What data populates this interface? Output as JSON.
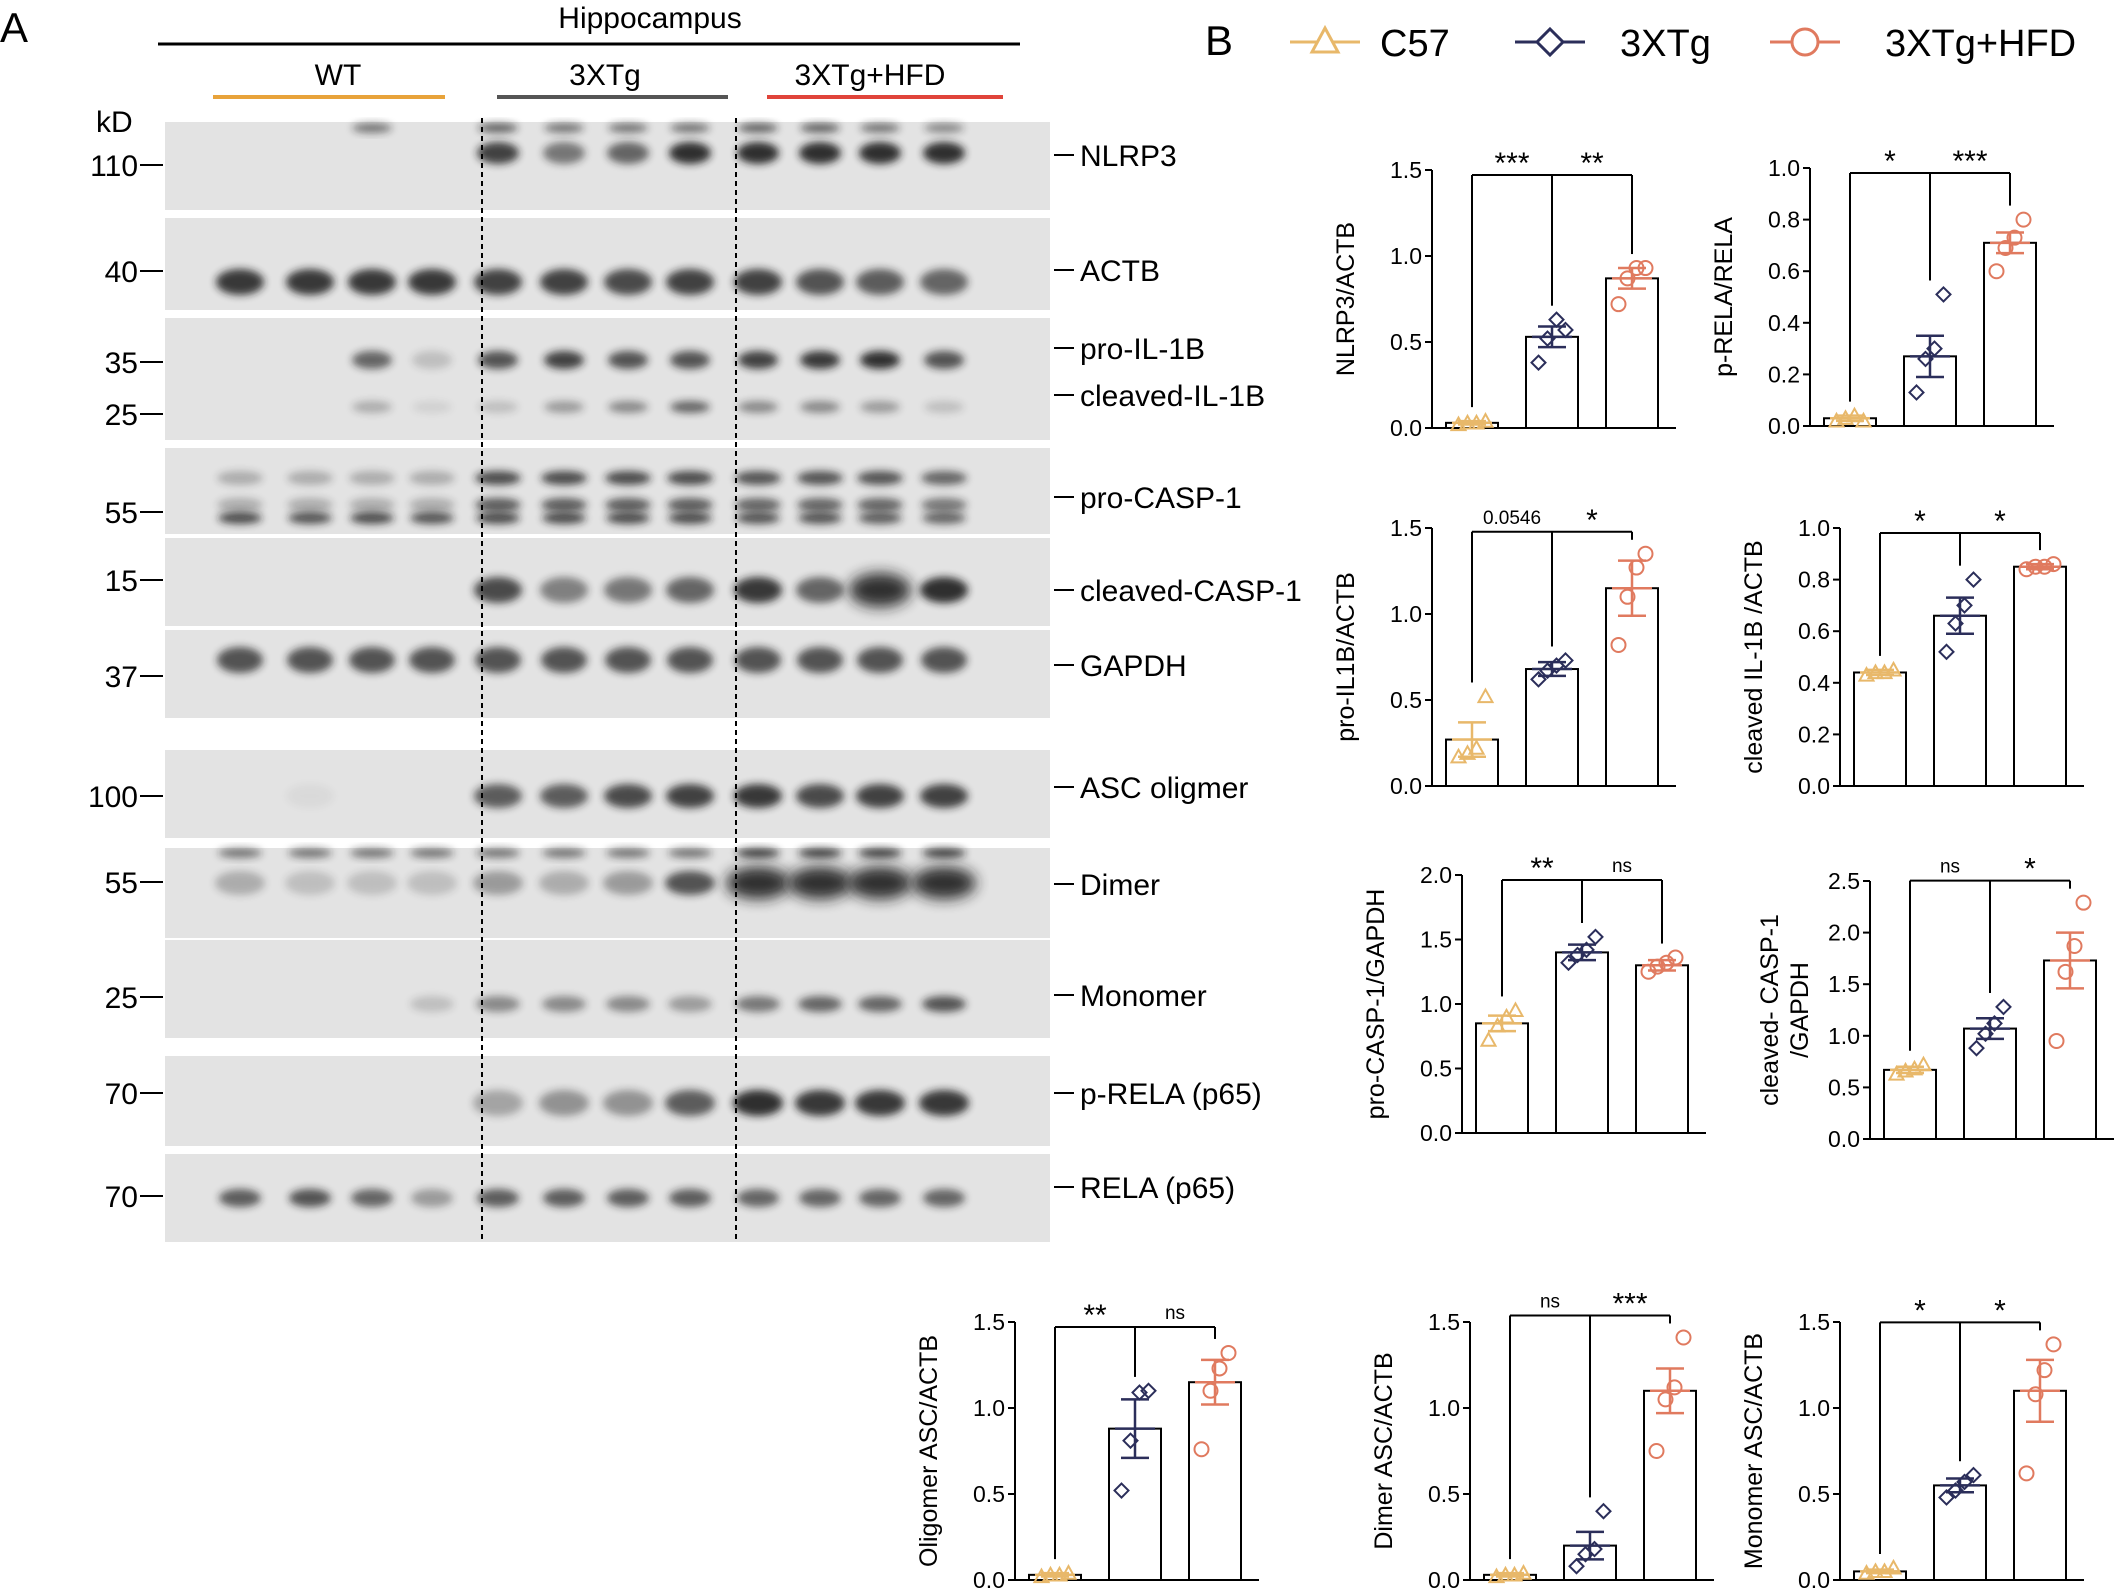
{
  "panel_a": {
    "letter": "A",
    "region": "Hippocampus",
    "groups": [
      {
        "name": "WT",
        "color": "#E8A33A"
      },
      {
        "name": "3XTg",
        "color": "#555555"
      },
      {
        "name": "3XTg+HFD",
        "color": "#E0443A"
      }
    ],
    "kd_label": "kD",
    "blots": [
      {
        "label": "NLRP3",
        "markers": [
          "110"
        ]
      },
      {
        "label": "ACTB",
        "markers": [
          "40"
        ]
      },
      {
        "label": "pro-IL-1B",
        "label2": "cleaved-IL-1B",
        "markers": [
          "35",
          "25"
        ]
      },
      {
        "label": "pro-CASP-1",
        "markers": [
          "55"
        ]
      },
      {
        "label": "cleaved-CASP-1",
        "markers": [
          "15"
        ]
      },
      {
        "label": "GAPDH",
        "markers": [
          "37"
        ]
      },
      {
        "label": "ASC oligmer",
        "markers": [
          "100"
        ]
      },
      {
        "label": "Dimer",
        "markers": [
          "55"
        ]
      },
      {
        "label": "Monomer",
        "markers": [
          "25"
        ]
      },
      {
        "label": "p-RELA (p65)",
        "markers": [
          "70"
        ]
      },
      {
        "label": "RELA (p65)",
        "markers": [
          "70"
        ]
      }
    ]
  },
  "panel_b": {
    "letter": "B",
    "legend": [
      {
        "name": "C57",
        "color": "#E8B86A",
        "marker": "triangle"
      },
      {
        "name": "3XTg",
        "color": "#2B2E5A",
        "marker": "diamond"
      },
      {
        "name": "3XTg+HFD",
        "color": "#E07A5F",
        "marker": "circle"
      }
    ]
  },
  "chart_data": [
    {
      "type": "bar",
      "ylabel": "NLRP3/ACTB",
      "ylim": [
        0,
        1.5
      ],
      "ticks": [
        "0.0",
        "0.5",
        "1.0",
        "1.5"
      ],
      "categories": [
        "C57",
        "3XTg",
        "3XTg+HFD"
      ],
      "values": [
        0.03,
        0.53,
        0.87
      ],
      "errors": [
        0.01,
        0.06,
        0.06
      ],
      "points": [
        [
          0.02,
          0.03,
          0.03,
          0.04
        ],
        [
          0.38,
          0.52,
          0.63,
          0.57
        ],
        [
          0.72,
          0.87,
          0.93,
          0.93
        ]
      ],
      "sig": [
        {
          "text": "***",
          "pair": [
            0,
            1
          ]
        },
        {
          "text": "**",
          "pair": [
            1,
            2
          ]
        }
      ]
    },
    {
      "type": "bar",
      "ylabel": "p-RELA/RELA",
      "ylim": [
        0,
        1.0
      ],
      "ticks": [
        "0.0",
        "0.2",
        "0.4",
        "0.6",
        "0.8",
        "1.0"
      ],
      "categories": [
        "C57",
        "3XTg",
        "3XTg+HFD"
      ],
      "values": [
        0.03,
        0.27,
        0.71
      ],
      "errors": [
        0.01,
        0.08,
        0.04
      ],
      "points": [
        [
          0.02,
          0.03,
          0.04,
          0.02
        ],
        [
          0.13,
          0.26,
          0.3,
          0.51
        ],
        [
          0.6,
          0.69,
          0.73,
          0.8
        ]
      ],
      "sig": [
        {
          "text": "*",
          "pair": [
            0,
            1
          ]
        },
        {
          "text": "***",
          "pair": [
            1,
            2
          ]
        }
      ]
    },
    {
      "type": "bar",
      "ylabel": "pro-IL1B/ACTB",
      "ylim": [
        0,
        1.5
      ],
      "ticks": [
        "0.0",
        "0.5",
        "1.0",
        "1.5"
      ],
      "categories": [
        "C57",
        "3XTg",
        "3XTg+HFD"
      ],
      "values": [
        0.27,
        0.68,
        1.15
      ],
      "errors": [
        0.1,
        0.04,
        0.16
      ],
      "points": [
        [
          0.17,
          0.19,
          0.22,
          0.52
        ],
        [
          0.62,
          0.67,
          0.7,
          0.73
        ],
        [
          0.82,
          1.1,
          1.27,
          1.35
        ]
      ],
      "sig": [
        {
          "text": "0.0546",
          "pair": [
            0,
            1
          ]
        },
        {
          "text": "*",
          "pair": [
            1,
            2
          ]
        }
      ]
    },
    {
      "type": "bar",
      "ylabel": "cleaved IL-1B /ACTB",
      "ylim": [
        0,
        1.0
      ],
      "ticks": [
        "0.0",
        "0.2",
        "0.4",
        "0.6",
        "0.8",
        "1.0"
      ],
      "categories": [
        "C57",
        "3XTg",
        "3XTg+HFD"
      ],
      "values": [
        0.44,
        0.66,
        0.85
      ],
      "errors": [
        0.01,
        0.07,
        0.01
      ],
      "points": [
        [
          0.43,
          0.44,
          0.44,
          0.45
        ],
        [
          0.52,
          0.63,
          0.7,
          0.8
        ],
        [
          0.84,
          0.85,
          0.85,
          0.86
        ]
      ],
      "sig": [
        {
          "text": "*",
          "pair": [
            0,
            1
          ]
        },
        {
          "text": "*",
          "pair": [
            1,
            2
          ]
        }
      ]
    },
    {
      "type": "bar",
      "ylabel": "pro-CASP-1/GAPDH",
      "ylim": [
        0,
        2.0
      ],
      "ticks": [
        "0.0",
        "0.5",
        "1.0",
        "1.5",
        "2.0"
      ],
      "categories": [
        "C57",
        "3XTg",
        "3XTg+HFD"
      ],
      "values": [
        0.85,
        1.4,
        1.3
      ],
      "errors": [
        0.06,
        0.06,
        0.04
      ],
      "points": [
        [
          0.72,
          0.83,
          0.9,
          0.95
        ],
        [
          1.32,
          1.38,
          1.42,
          1.52
        ],
        [
          1.25,
          1.29,
          1.32,
          1.36
        ]
      ],
      "sig": [
        {
          "text": "**",
          "pair": [
            0,
            1
          ]
        },
        {
          "text": "ns",
          "pair": [
            1,
            2
          ]
        }
      ]
    },
    {
      "type": "bar",
      "ylabel": "cleaved- CASP-1\n/GAPDH",
      "ylim": [
        0,
        2.5
      ],
      "ticks": [
        "0.0",
        "0.5",
        "1.0",
        "1.5",
        "2.0",
        "2.5"
      ],
      "categories": [
        "C57",
        "3XTg",
        "3XTg+HFD"
      ],
      "values": [
        0.67,
        1.07,
        1.73
      ],
      "errors": [
        0.03,
        0.1,
        0.27
      ],
      "points": [
        [
          0.63,
          0.66,
          0.68,
          0.72
        ],
        [
          0.88,
          1.02,
          1.12,
          1.28
        ],
        [
          0.95,
          1.62,
          1.87,
          2.29
        ]
      ],
      "sig": [
        {
          "text": "ns",
          "pair": [
            0,
            1
          ]
        },
        {
          "text": "*",
          "pair": [
            1,
            2
          ]
        }
      ]
    },
    {
      "type": "bar",
      "ylabel": "Oligomer ASC/ACTB",
      "ylim": [
        0,
        1.5
      ],
      "ticks": [
        "0.0",
        "0.5",
        "1.0",
        "1.5"
      ],
      "categories": [
        "C57",
        "3XTg",
        "3XTg+HFD"
      ],
      "values": [
        0.03,
        0.88,
        1.15
      ],
      "errors": [
        0.01,
        0.17,
        0.13
      ],
      "points": [
        [
          0.02,
          0.03,
          0.03,
          0.04
        ],
        [
          0.52,
          0.81,
          1.09,
          1.1
        ],
        [
          0.76,
          1.1,
          1.23,
          1.32
        ]
      ],
      "sig": [
        {
          "text": "**",
          "pair": [
            0,
            1
          ]
        },
        {
          "text": "ns",
          "pair": [
            1,
            2
          ]
        }
      ]
    },
    {
      "type": "bar",
      "ylabel": "Dimer ASC/ACTB",
      "ylim": [
        0,
        1.5
      ],
      "ticks": [
        "0.0",
        "0.5",
        "1.0",
        "1.5"
      ],
      "categories": [
        "C57",
        "3XTg",
        "3XTg+HFD"
      ],
      "values": [
        0.03,
        0.2,
        1.1
      ],
      "errors": [
        0.01,
        0.08,
        0.13
      ],
      "points": [
        [
          0.02,
          0.03,
          0.03,
          0.04
        ],
        [
          0.08,
          0.15,
          0.18,
          0.4
        ],
        [
          0.75,
          1.05,
          1.12,
          1.41
        ]
      ],
      "sig": [
        {
          "text": "ns",
          "pair": [
            0,
            1
          ]
        },
        {
          "text": "***",
          "pair": [
            1,
            2
          ]
        }
      ]
    },
    {
      "type": "bar",
      "ylabel": "Monomer ASC/ACTB",
      "ylim": [
        0,
        1.5
      ],
      "ticks": [
        "0.0",
        "0.5",
        "1.0",
        "1.5"
      ],
      "categories": [
        "C57",
        "3XTg",
        "3XTg+HFD"
      ],
      "values": [
        0.05,
        0.55,
        1.1
      ],
      "errors": [
        0.01,
        0.04,
        0.18
      ],
      "points": [
        [
          0.04,
          0.05,
          0.05,
          0.07
        ],
        [
          0.48,
          0.52,
          0.57,
          0.61
        ],
        [
          0.62,
          1.08,
          1.22,
          1.37
        ]
      ],
      "sig": [
        {
          "text": "*",
          "pair": [
            0,
            1
          ]
        },
        {
          "text": "*",
          "pair": [
            1,
            2
          ]
        }
      ]
    }
  ]
}
